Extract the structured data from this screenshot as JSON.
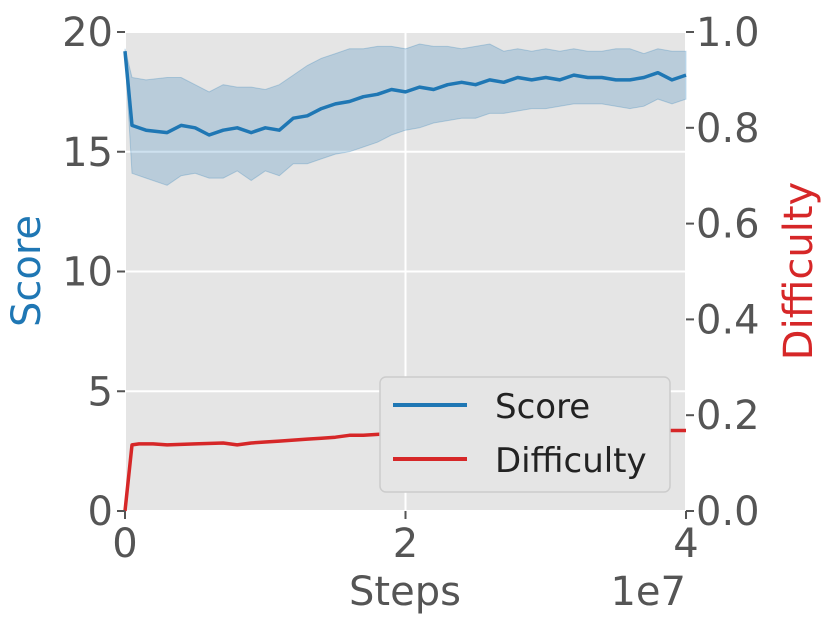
{
  "chart_data": {
    "type": "line",
    "xlabel": "Steps",
    "x_offset_label": "1e7",
    "x_ticks": [
      0,
      2,
      4
    ],
    "x_tick_labels": [
      "0",
      "2",
      "4"
    ],
    "xlim": [
      0,
      4
    ],
    "y_left": {
      "label": "Score",
      "color": "#1f77b4",
      "lim": [
        0,
        20
      ],
      "ticks": [
        0,
        5,
        10,
        15,
        20
      ],
      "tick_labels": [
        "0",
        "5",
        "10",
        "15",
        "20"
      ]
    },
    "y_right": {
      "label": "Difficulty",
      "color": "#d62728",
      "lim": [
        0,
        1
      ],
      "ticks": [
        0,
        0.2,
        0.4,
        0.6,
        0.8,
        1.0
      ],
      "tick_labels": [
        "0.0",
        "0.2",
        "0.4",
        "0.6",
        "0.8",
        "1.0"
      ]
    },
    "grid": true,
    "legend_position": "bottom-right",
    "series": [
      {
        "name": "Score",
        "axis": "left",
        "color": "#1f77b4",
        "x": [
          0,
          0.05,
          0.15,
          0.3,
          0.4,
          0.5,
          0.6,
          0.7,
          0.8,
          0.9,
          1.0,
          1.1,
          1.2,
          1.3,
          1.4,
          1.5,
          1.6,
          1.7,
          1.8,
          1.9,
          2.0,
          2.1,
          2.2,
          2.3,
          2.4,
          2.5,
          2.6,
          2.7,
          2.8,
          2.9,
          3.0,
          3.1,
          3.2,
          3.3,
          3.4,
          3.5,
          3.6,
          3.7,
          3.8,
          3.9,
          4.0
        ],
        "y": [
          19.2,
          16.1,
          15.9,
          15.8,
          16.1,
          16.0,
          15.7,
          15.9,
          16.0,
          15.8,
          16.0,
          15.9,
          16.4,
          16.5,
          16.8,
          17.0,
          17.1,
          17.3,
          17.4,
          17.6,
          17.5,
          17.7,
          17.6,
          17.8,
          17.9,
          17.8,
          18.0,
          17.9,
          18.1,
          18.0,
          18.1,
          18.0,
          18.2,
          18.1,
          18.1,
          18.0,
          18.0,
          18.1,
          18.3,
          18.0,
          18.2
        ],
        "band_upper": [
          19.3,
          18.1,
          18.0,
          18.1,
          18.1,
          17.8,
          17.5,
          17.8,
          17.7,
          17.7,
          17.6,
          17.8,
          18.2,
          18.6,
          18.9,
          19.1,
          19.3,
          19.3,
          19.4,
          19.4,
          19.3,
          19.5,
          19.4,
          19.4,
          19.3,
          19.4,
          19.5,
          19.2,
          19.3,
          19.2,
          19.3,
          19.2,
          19.3,
          19.2,
          19.2,
          19.3,
          19.3,
          19.1,
          19.3,
          19.2,
          19.2
        ],
        "band_lower": [
          19.1,
          14.1,
          13.9,
          13.6,
          14.0,
          14.1,
          13.9,
          13.9,
          14.2,
          13.8,
          14.2,
          14.0,
          14.5,
          14.5,
          14.7,
          14.9,
          15.0,
          15.2,
          15.4,
          15.7,
          15.9,
          16.0,
          16.2,
          16.3,
          16.4,
          16.4,
          16.6,
          16.6,
          16.7,
          16.8,
          16.8,
          16.9,
          17.0,
          17.0,
          17.0,
          16.9,
          16.8,
          16.9,
          17.2,
          17.0,
          17.2
        ]
      },
      {
        "name": "Difficulty",
        "axis": "right",
        "color": "#d62728",
        "x": [
          0,
          0.05,
          0.1,
          0.2,
          0.3,
          0.5,
          0.7,
          0.8,
          0.9,
          1.0,
          1.1,
          1.2,
          1.3,
          1.4,
          1.5,
          1.6,
          1.7,
          1.8,
          1.9,
          2.0,
          2.1,
          2.2,
          2.3,
          2.4,
          2.5,
          2.6,
          2.7,
          2.8,
          2.9,
          3.0,
          3.1,
          3.2,
          3.3,
          3.4,
          3.5,
          3.6,
          3.7,
          3.8,
          3.9,
          4.0
        ],
        "y": [
          0.0,
          0.138,
          0.14,
          0.14,
          0.138,
          0.14,
          0.142,
          0.138,
          0.142,
          0.144,
          0.146,
          0.148,
          0.15,
          0.152,
          0.154,
          0.158,
          0.158,
          0.16,
          0.162,
          0.164,
          0.164,
          0.166,
          0.166,
          0.166,
          0.168,
          0.168,
          0.168,
          0.168,
          0.17,
          0.168,
          0.168,
          0.17,
          0.168,
          0.168,
          0.17,
          0.168,
          0.168,
          0.168,
          0.168,
          0.168
        ]
      }
    ]
  }
}
